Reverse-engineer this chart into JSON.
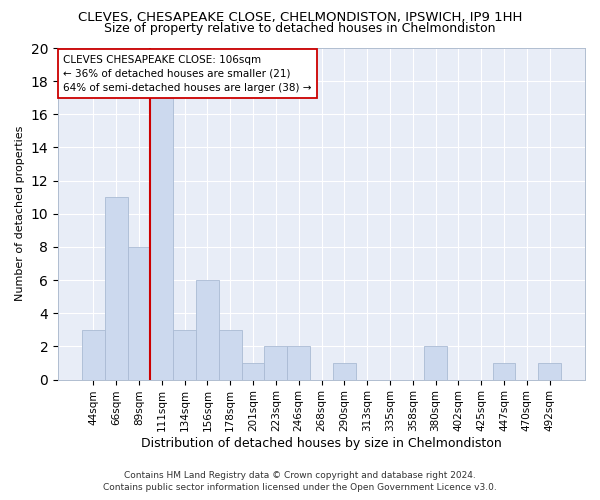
{
  "title": "CLEVES, CHESAPEAKE CLOSE, CHELMONDISTON, IPSWICH, IP9 1HH",
  "subtitle": "Size of property relative to detached houses in Chelmondiston",
  "xlabel": "Distribution of detached houses by size in Chelmondiston",
  "ylabel": "Number of detached properties",
  "categories": [
    "44sqm",
    "66sqm",
    "89sqm",
    "111sqm",
    "134sqm",
    "156sqm",
    "178sqm",
    "201sqm",
    "223sqm",
    "246sqm",
    "268sqm",
    "290sqm",
    "313sqm",
    "335sqm",
    "358sqm",
    "380sqm",
    "402sqm",
    "425sqm",
    "447sqm",
    "470sqm",
    "492sqm"
  ],
  "values": [
    3,
    11,
    8,
    17,
    3,
    6,
    3,
    1,
    2,
    2,
    0,
    1,
    0,
    0,
    0,
    2,
    0,
    0,
    1,
    0,
    1
  ],
  "bar_color": "#ccd9ee",
  "bar_edge_color": "#aabbd4",
  "vline_x_index": 3,
  "vline_color": "#cc0000",
  "annotation_line1": "CLEVES CHESAPEAKE CLOSE: 106sqm",
  "annotation_line2": "← 36% of detached houses are smaller (21)",
  "annotation_line3": "64% of semi-detached houses are larger (38) →",
  "annotation_box_color": "#ffffff",
  "annotation_box_edge": "#cc0000",
  "ylim": [
    0,
    20
  ],
  "yticks": [
    0,
    2,
    4,
    6,
    8,
    10,
    12,
    14,
    16,
    18,
    20
  ],
  "footer": "Contains HM Land Registry data © Crown copyright and database right 2024.\nContains public sector information licensed under the Open Government Licence v3.0.",
  "background_color": "#ffffff",
  "plot_background": "#e8edf7",
  "grid_color": "#ffffff",
  "title_fontsize": 9.5,
  "subtitle_fontsize": 9,
  "ylabel_fontsize": 8,
  "xlabel_fontsize": 9
}
